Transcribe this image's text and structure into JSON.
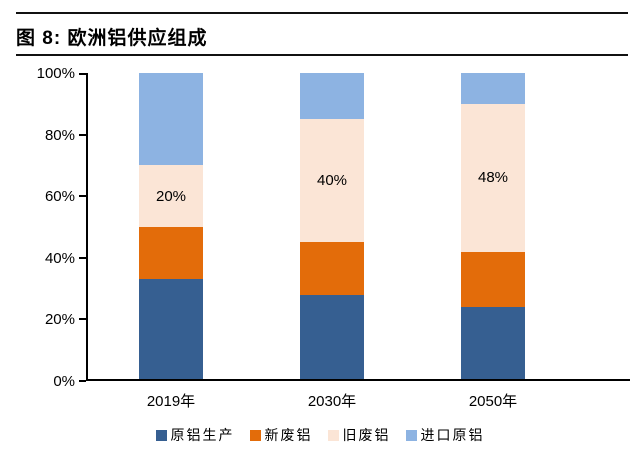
{
  "figure": {
    "title": "图 8:  欧洲铝供应组成"
  },
  "chart_data": {
    "type": "bar",
    "stacked": true,
    "percent_stacked": true,
    "title": "图 8: 欧洲铝供应组成",
    "categories": [
      "2019年",
      "2030年",
      "2050年"
    ],
    "series": [
      {
        "name": "原铝生产",
        "color": "#365F91",
        "values": [
          33,
          28,
          24
        ]
      },
      {
        "name": "新废铝",
        "color": "#E36C0A",
        "values": [
          17,
          17,
          18
        ]
      },
      {
        "name": "旧废铝",
        "color": "#FBE5D6",
        "values": [
          20,
          40,
          48
        ],
        "labels": [
          "20%",
          "40%",
          "48%"
        ]
      },
      {
        "name": "进口原铝",
        "color": "#8DB3E2",
        "values": [
          30,
          15,
          10
        ]
      }
    ],
    "xlabel": "",
    "ylabel": "",
    "ylim": [
      0,
      100
    ],
    "y_ticks": [
      {
        "value": 0,
        "label": "0%"
      },
      {
        "value": 20,
        "label": "20%"
      },
      {
        "value": 40,
        "label": "40%"
      },
      {
        "value": 60,
        "label": "60%"
      },
      {
        "value": 80,
        "label": "80%"
      },
      {
        "value": 100,
        "label": "100%"
      }
    ],
    "grid": false,
    "legend_position": "bottom"
  },
  "colors": {
    "axis": "#000000",
    "rule": "#111111",
    "background": "#ffffff",
    "text": "#000000"
  }
}
